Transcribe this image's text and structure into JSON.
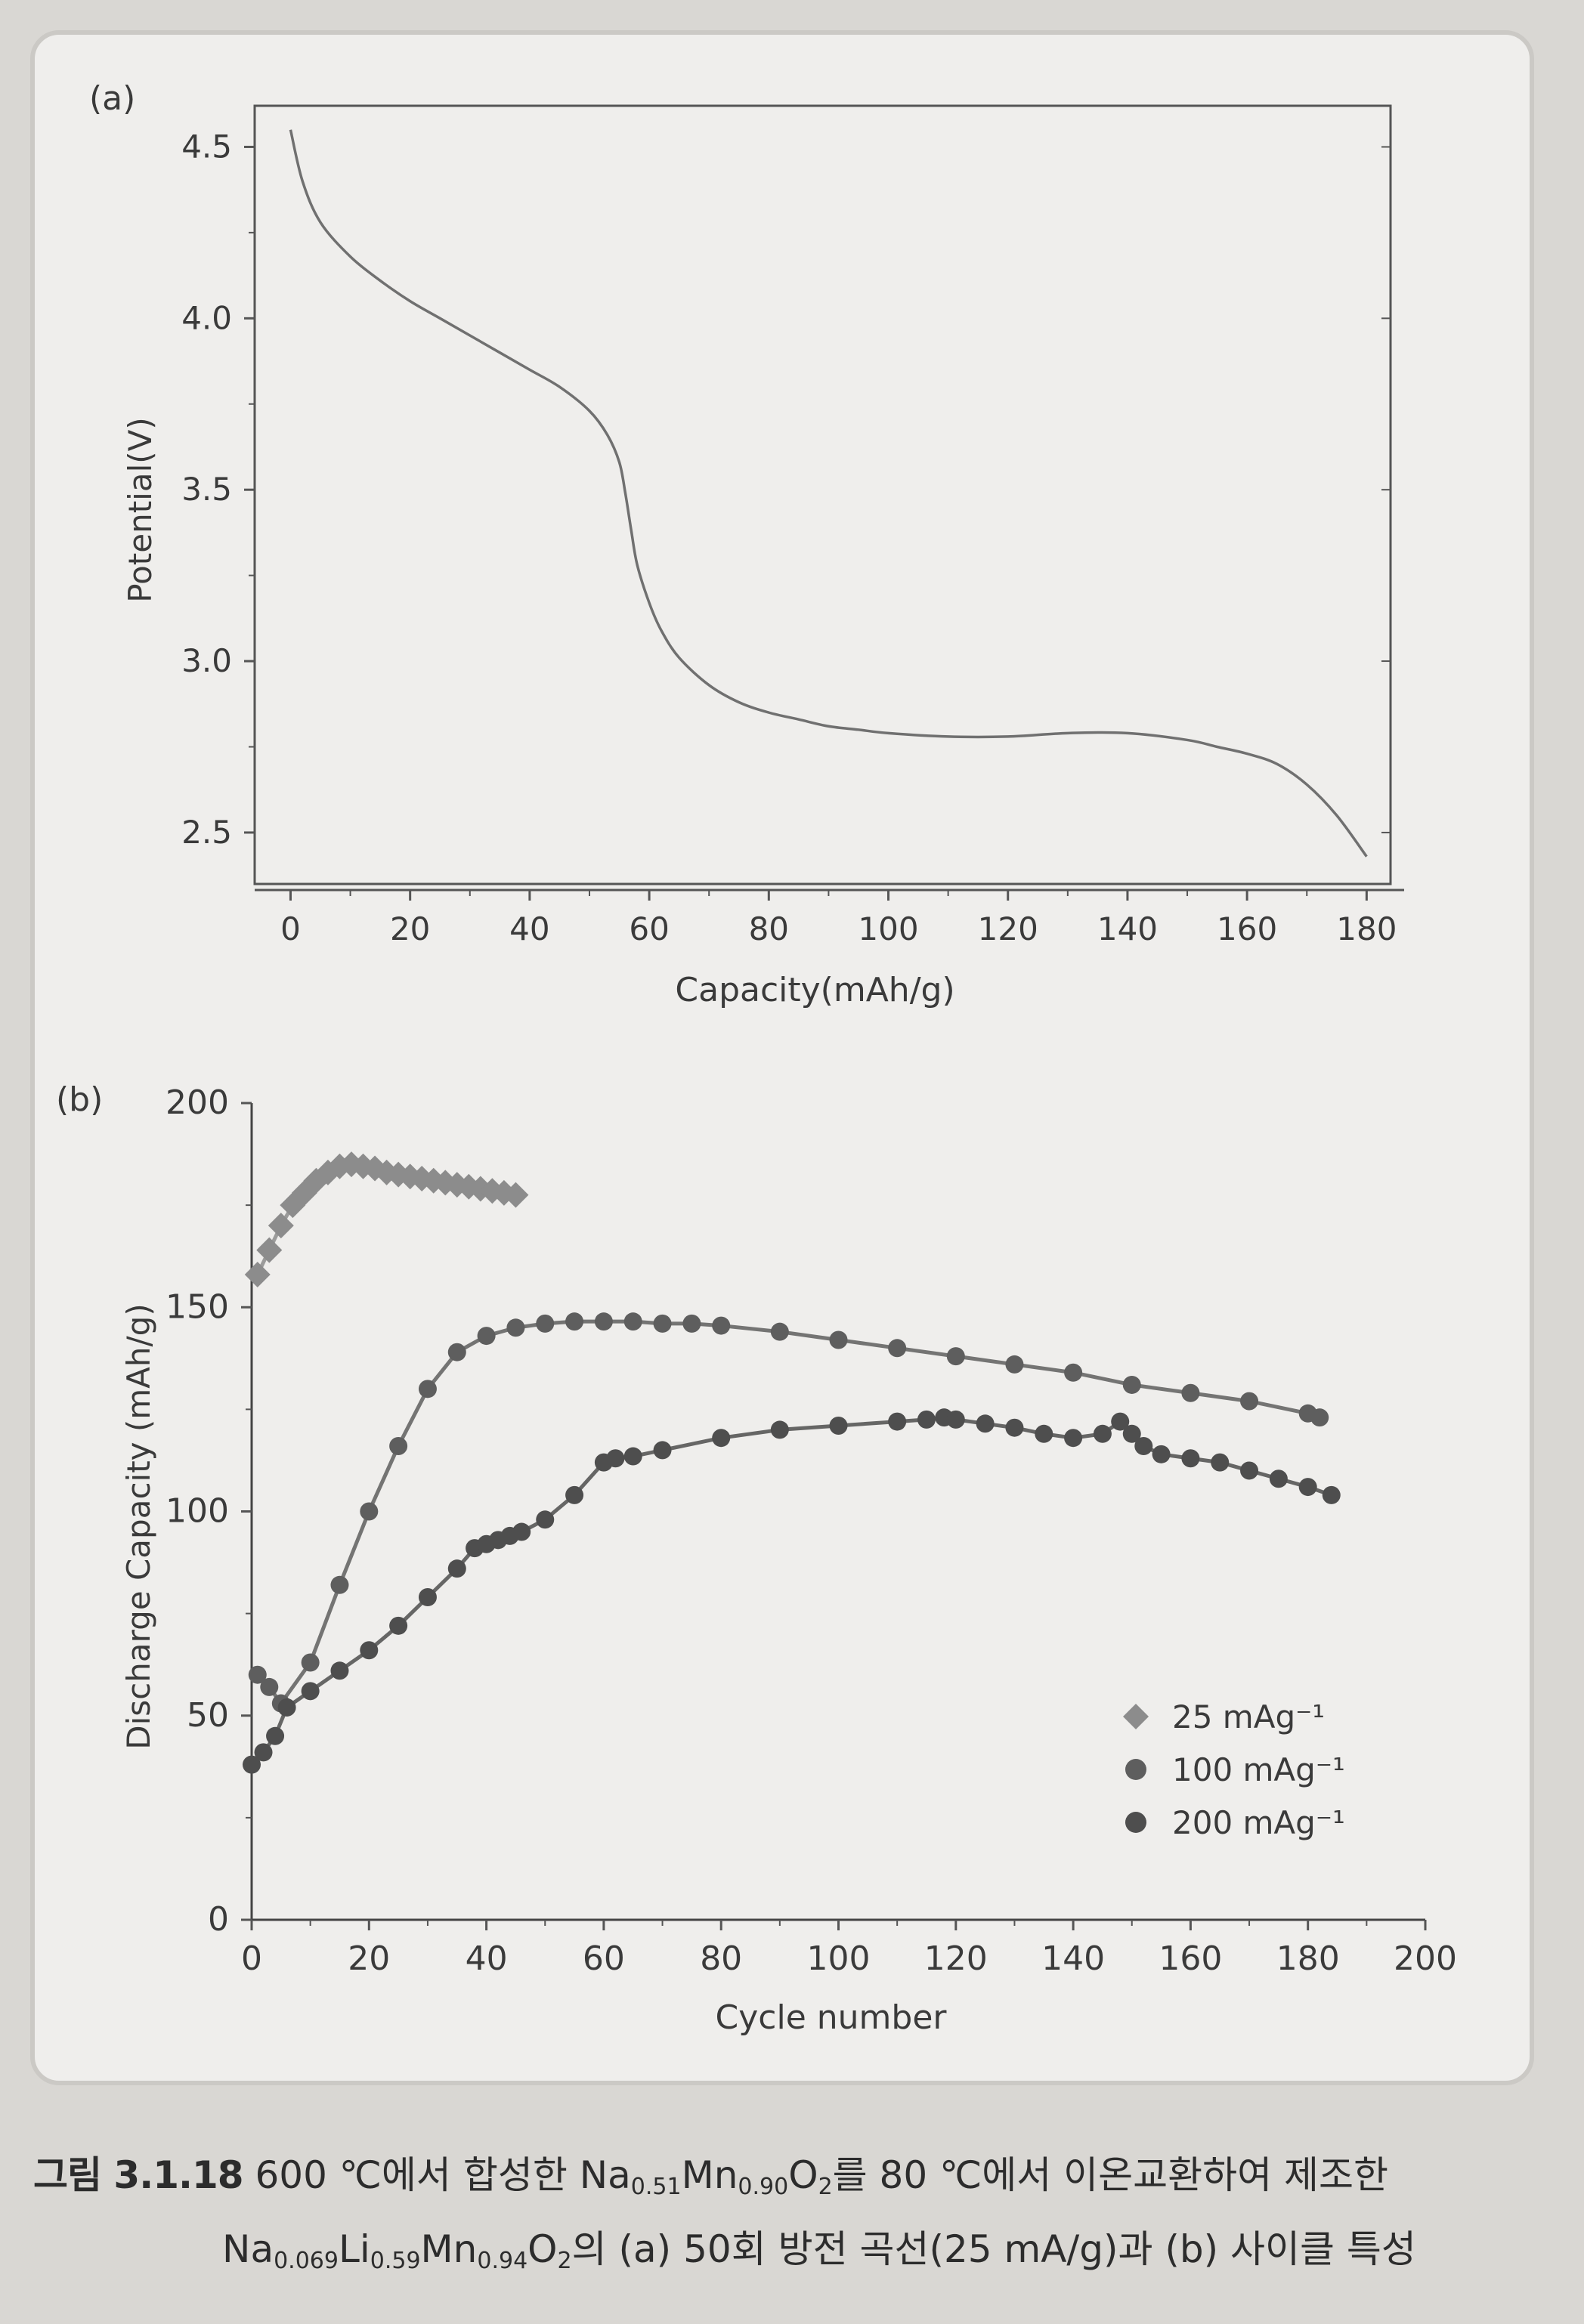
{
  "chart_data": [
    {
      "panel_label": "(a)",
      "type": "line",
      "xlabel": "Capacity(mAh/g)",
      "ylabel": "Potential(V)",
      "xlim": [
        -6,
        184
      ],
      "ylim": [
        2.35,
        4.62
      ],
      "xticks": [
        0,
        20,
        40,
        60,
        80,
        100,
        120,
        140,
        160,
        180
      ],
      "yticks": [
        "2.5",
        "3.0",
        "3.5",
        "4.0",
        "4.5"
      ],
      "grid": false,
      "series": [
        {
          "color": "#707070",
          "x": [
            0,
            2,
            5,
            10,
            15,
            20,
            25,
            30,
            35,
            40,
            45,
            50,
            53,
            55,
            56,
            57,
            58,
            60,
            62,
            65,
            70,
            75,
            80,
            85,
            90,
            95,
            100,
            110,
            120,
            130,
            140,
            150,
            155,
            160,
            165,
            170,
            175,
            180
          ],
          "y": [
            4.55,
            4.4,
            4.28,
            4.18,
            4.11,
            4.05,
            4.0,
            3.95,
            3.9,
            3.85,
            3.8,
            3.73,
            3.66,
            3.58,
            3.49,
            3.38,
            3.28,
            3.17,
            3.09,
            3.01,
            2.93,
            2.88,
            2.85,
            2.83,
            2.81,
            2.8,
            2.79,
            2.78,
            2.78,
            2.79,
            2.79,
            2.77,
            2.75,
            2.73,
            2.7,
            2.64,
            2.55,
            2.43
          ]
        }
      ]
    },
    {
      "panel_label": "(b)",
      "type": "scatter",
      "xlabel": "Cycle number",
      "ylabel": "Discharge Capacity (mAh/g)",
      "xlim": [
        0,
        200
      ],
      "ylim": [
        0,
        200
      ],
      "xticks": [
        0,
        20,
        40,
        60,
        80,
        100,
        120,
        140,
        160,
        180,
        200
      ],
      "yticks": [
        0,
        50,
        100,
        150,
        200
      ],
      "grid": false,
      "legend_position": "lower-right",
      "series": [
        {
          "name": "25 mAg⁻¹",
          "marker": "diamond",
          "color": "#8c8c8c",
          "x": [
            1,
            3,
            5,
            7,
            9,
            11,
            13,
            15,
            17,
            19,
            21,
            23,
            25,
            27,
            29,
            31,
            33,
            35,
            37,
            39,
            41,
            43,
            45
          ],
          "y": [
            158,
            164,
            170,
            175,
            178,
            181,
            183,
            184.5,
            185,
            184.5,
            184,
            183,
            182.5,
            182,
            181.5,
            181,
            180.5,
            180,
            179.5,
            179,
            178.5,
            178,
            177.5
          ]
        },
        {
          "name": "100 mAg⁻¹",
          "marker": "circle",
          "color": "#5e5e5e",
          "x": [
            1,
            3,
            5,
            10,
            15,
            20,
            25,
            30,
            35,
            40,
            45,
            50,
            55,
            60,
            65,
            70,
            75,
            80,
            90,
            100,
            110,
            120,
            130,
            140,
            150,
            160,
            170,
            180,
            182
          ],
          "y": [
            60,
            57,
            53,
            63,
            82,
            100,
            116,
            130,
            139,
            143,
            145,
            146,
            146.5,
            146.5,
            146.5,
            146,
            146,
            145.5,
            144,
            142,
            140,
            138,
            136,
            134,
            131,
            129,
            127,
            124,
            123
          ]
        },
        {
          "name": "200 mAg⁻¹",
          "marker": "circle",
          "color": "#4e4e4e",
          "x": [
            0,
            2,
            4,
            6,
            10,
            15,
            20,
            25,
            30,
            35,
            38,
            40,
            42,
            44,
            46,
            50,
            55,
            60,
            62,
            65,
            70,
            80,
            90,
            100,
            110,
            115,
            118,
            120,
            125,
            130,
            135,
            140,
            145,
            148,
            150,
            152,
            155,
            160,
            165,
            170,
            175,
            180,
            184
          ],
          "y": [
            38,
            41,
            45,
            52,
            56,
            61,
            66,
            72,
            79,
            86,
            91,
            92,
            93,
            94,
            95,
            98,
            104,
            112,
            113,
            113.5,
            115,
            118,
            120,
            121,
            122,
            122.5,
            123,
            122.5,
            121.5,
            120.5,
            119,
            118,
            119,
            122,
            119,
            116,
            114,
            113,
            112,
            110,
            108,
            106,
            104
          ]
        }
      ]
    }
  ],
  "caption": {
    "fig_label": "그림 3.1.18",
    "line1": [
      {
        "t": " 600 ℃에서 합성한 Na"
      },
      {
        "sub": "0.51"
      },
      {
        "t": "Mn"
      },
      {
        "sub": "0.90"
      },
      {
        "t": "O"
      },
      {
        "sub": "2"
      },
      {
        "t": "를 80 ℃에서 이온교환하여 제조한"
      }
    ],
    "line2": [
      {
        "t": "Na"
      },
      {
        "sub": "0.069"
      },
      {
        "t": "Li"
      },
      {
        "sub": "0.59"
      },
      {
        "t": "Mn"
      },
      {
        "sub": "0.94"
      },
      {
        "t": "O"
      },
      {
        "sub": "2"
      },
      {
        "t": "의 (a) 50회 방전 곡선(25 mA/g)과 (b) 사이클 특성"
      }
    ]
  }
}
